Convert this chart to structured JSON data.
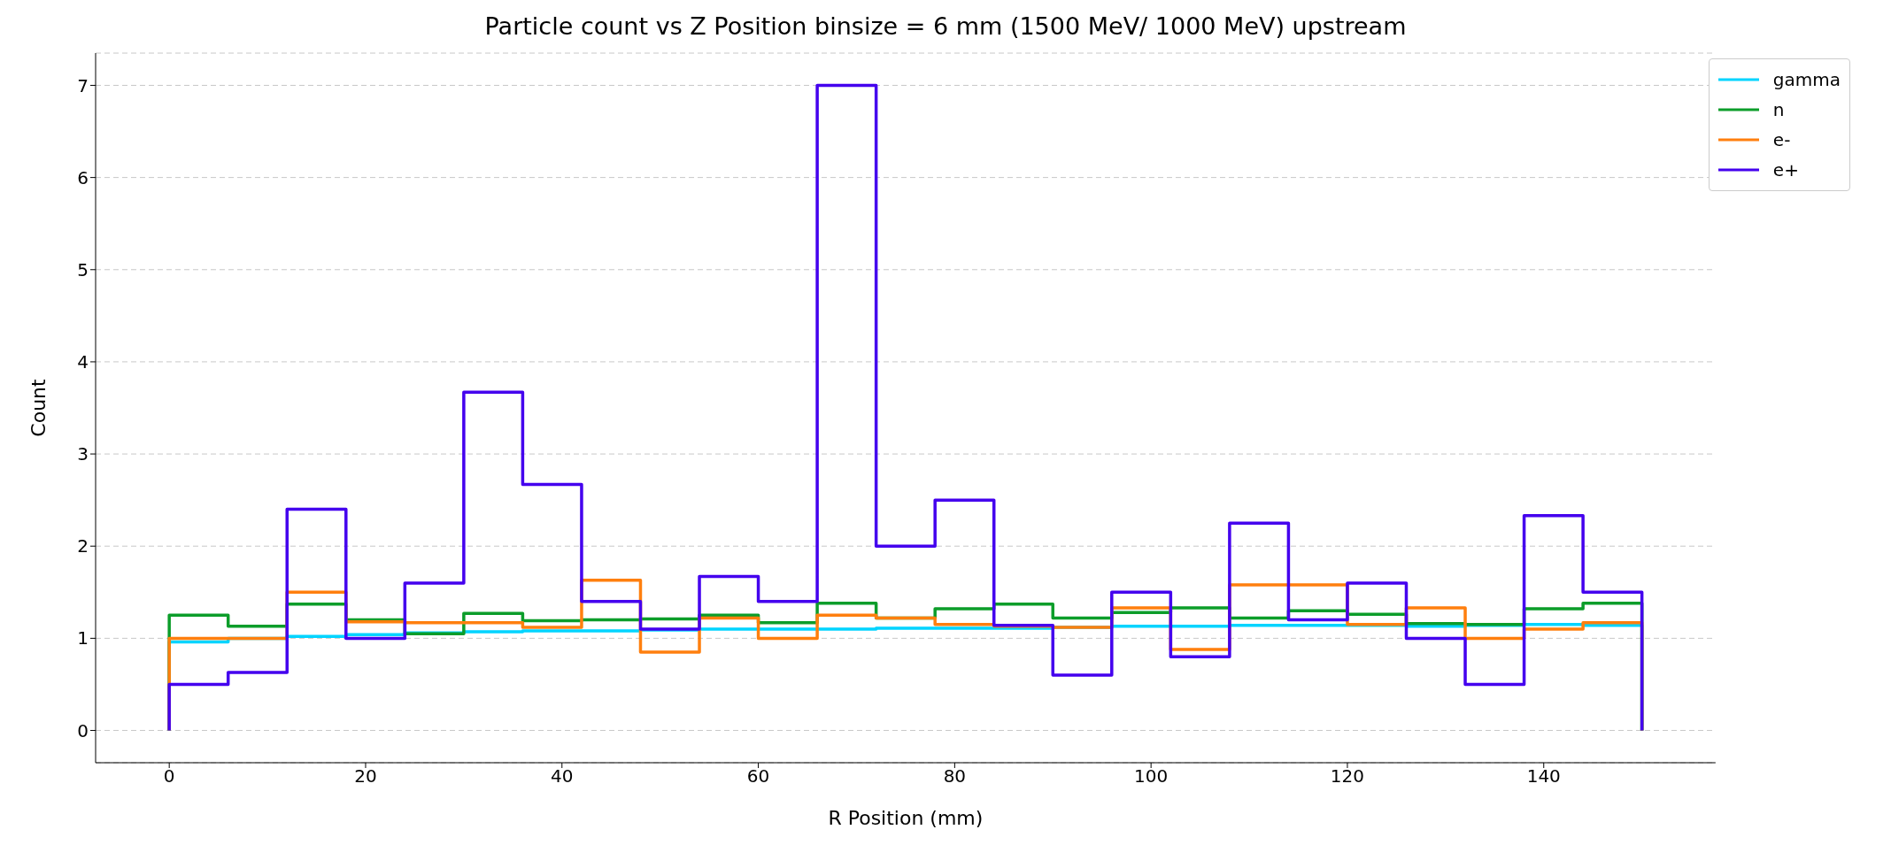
{
  "chart_data": {
    "type": "histogram",
    "title": "Particle count vs Z Position binsize = 6 mm (1500 MeV/ 1000 MeV) upstream",
    "xlabel": "R Position (mm)",
    "ylabel": "Count",
    "bins": [
      0,
      6,
      12,
      18,
      24,
      30,
      36,
      42,
      48,
      54,
      60,
      66,
      72,
      78,
      84,
      90,
      96,
      102,
      108,
      114,
      120,
      126,
      132,
      138,
      144,
      150
    ],
    "series": [
      {
        "name": "gamma",
        "color": "#00d4ff",
        "values": [
          0.96,
          1.0,
          1.02,
          1.04,
          1.06,
          1.07,
          1.08,
          1.08,
          1.09,
          1.1,
          1.1,
          1.1,
          1.11,
          1.11,
          1.11,
          1.12,
          1.13,
          1.13,
          1.14,
          1.14,
          1.14,
          1.13,
          1.14,
          1.15,
          1.14
        ]
      },
      {
        "name": "n",
        "color": "#0c9d2a",
        "values": [
          1.25,
          1.13,
          1.37,
          1.2,
          1.05,
          1.27,
          1.19,
          1.2,
          1.21,
          1.25,
          1.17,
          1.38,
          1.22,
          1.32,
          1.37,
          1.22,
          1.28,
          1.33,
          1.22,
          1.3,
          1.26,
          1.16,
          1.15,
          1.32,
          1.38
        ]
      },
      {
        "name": "e-",
        "color": "#ff7f0e",
        "values": [
          1.0,
          1.0,
          1.5,
          1.18,
          1.17,
          1.17,
          1.12,
          1.63,
          0.85,
          1.22,
          1.0,
          1.25,
          1.22,
          1.15,
          1.13,
          1.12,
          1.33,
          0.88,
          1.58,
          1.58,
          1.15,
          1.33,
          1.0,
          1.1,
          1.17
        ]
      },
      {
        "name": "e+",
        "color": "#4400ee",
        "values": [
          0.5,
          0.63,
          2.4,
          1.0,
          1.6,
          3.67,
          2.67,
          1.4,
          1.1,
          1.67,
          1.4,
          7.0,
          2.0,
          2.5,
          1.14,
          0.6,
          1.5,
          0.8,
          2.25,
          1.2,
          1.6,
          1.0,
          0.5,
          2.33,
          1.5
        ]
      }
    ],
    "xlim": [
      -7.5,
      157.5
    ],
    "xticks": [
      0,
      20,
      40,
      60,
      80,
      100,
      120,
      140
    ],
    "ylim": [
      -0.35,
      7.35
    ],
    "yticks": [
      0,
      1,
      2,
      3,
      4,
      5,
      6,
      7
    ],
    "grid": "y",
    "legend": "top right",
    "line_style": "solid"
  }
}
